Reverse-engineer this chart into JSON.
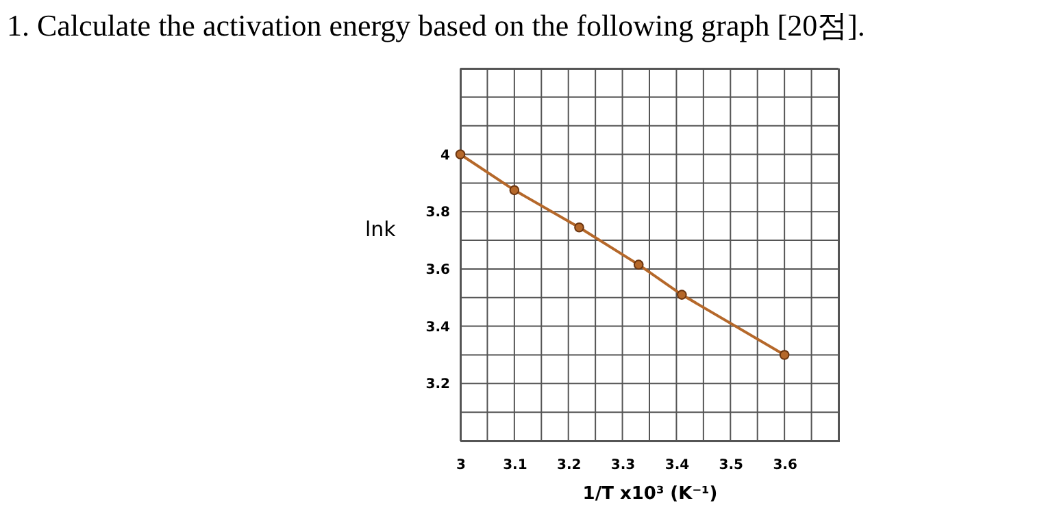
{
  "chart_data": {
    "type": "line",
    "title": "1. Calculate the activation energy based on the following graph [20점].",
    "xlabel": "1/T x10³ (K⁻¹)",
    "ylabel": "lnk",
    "x": [
      3,
      3.1,
      3.22,
      3.33,
      3.41,
      3.6
    ],
    "series": [
      {
        "color": "#b5682a",
        "values": [
          4,
          3.875,
          3.745,
          3.615,
          3.51,
          3.3
        ]
      }
    ],
    "marker": "circle",
    "line_style": "solid",
    "grid": true,
    "legend": false,
    "xlim": [
      3,
      3.7
    ],
    "ylim": [
      3.0,
      4.3
    ],
    "xticks": [
      3,
      {
        "value": 3.05,
        "label": null
      },
      3.1,
      {
        "value": 3.15,
        "label": null
      },
      3.2,
      {
        "value": 3.25,
        "label": null
      },
      3.3,
      {
        "value": 3.35,
        "label": null
      },
      3.4,
      {
        "value": 3.45,
        "label": null
      },
      3.5,
      {
        "value": 3.55,
        "label": null
      },
      3.6,
      {
        "value": 3.65,
        "label": null
      },
      {
        "value": 3.7,
        "label": null
      }
    ],
    "yticks": [
      {
        "value": 3.0,
        "label": null
      },
      {
        "value": 3.1,
        "label": null
      },
      3.2,
      {
        "value": 3.3,
        "label": null
      },
      3.4,
      {
        "value": 3.5,
        "label": null
      },
      3.6,
      {
        "value": 3.7,
        "label": null
      },
      3.8,
      {
        "value": 3.9,
        "label": null
      },
      4,
      {
        "value": 4.1,
        "label": null
      },
      {
        "value": 4.2,
        "label": null
      },
      {
        "value": 4.3,
        "label": null
      }
    ]
  }
}
